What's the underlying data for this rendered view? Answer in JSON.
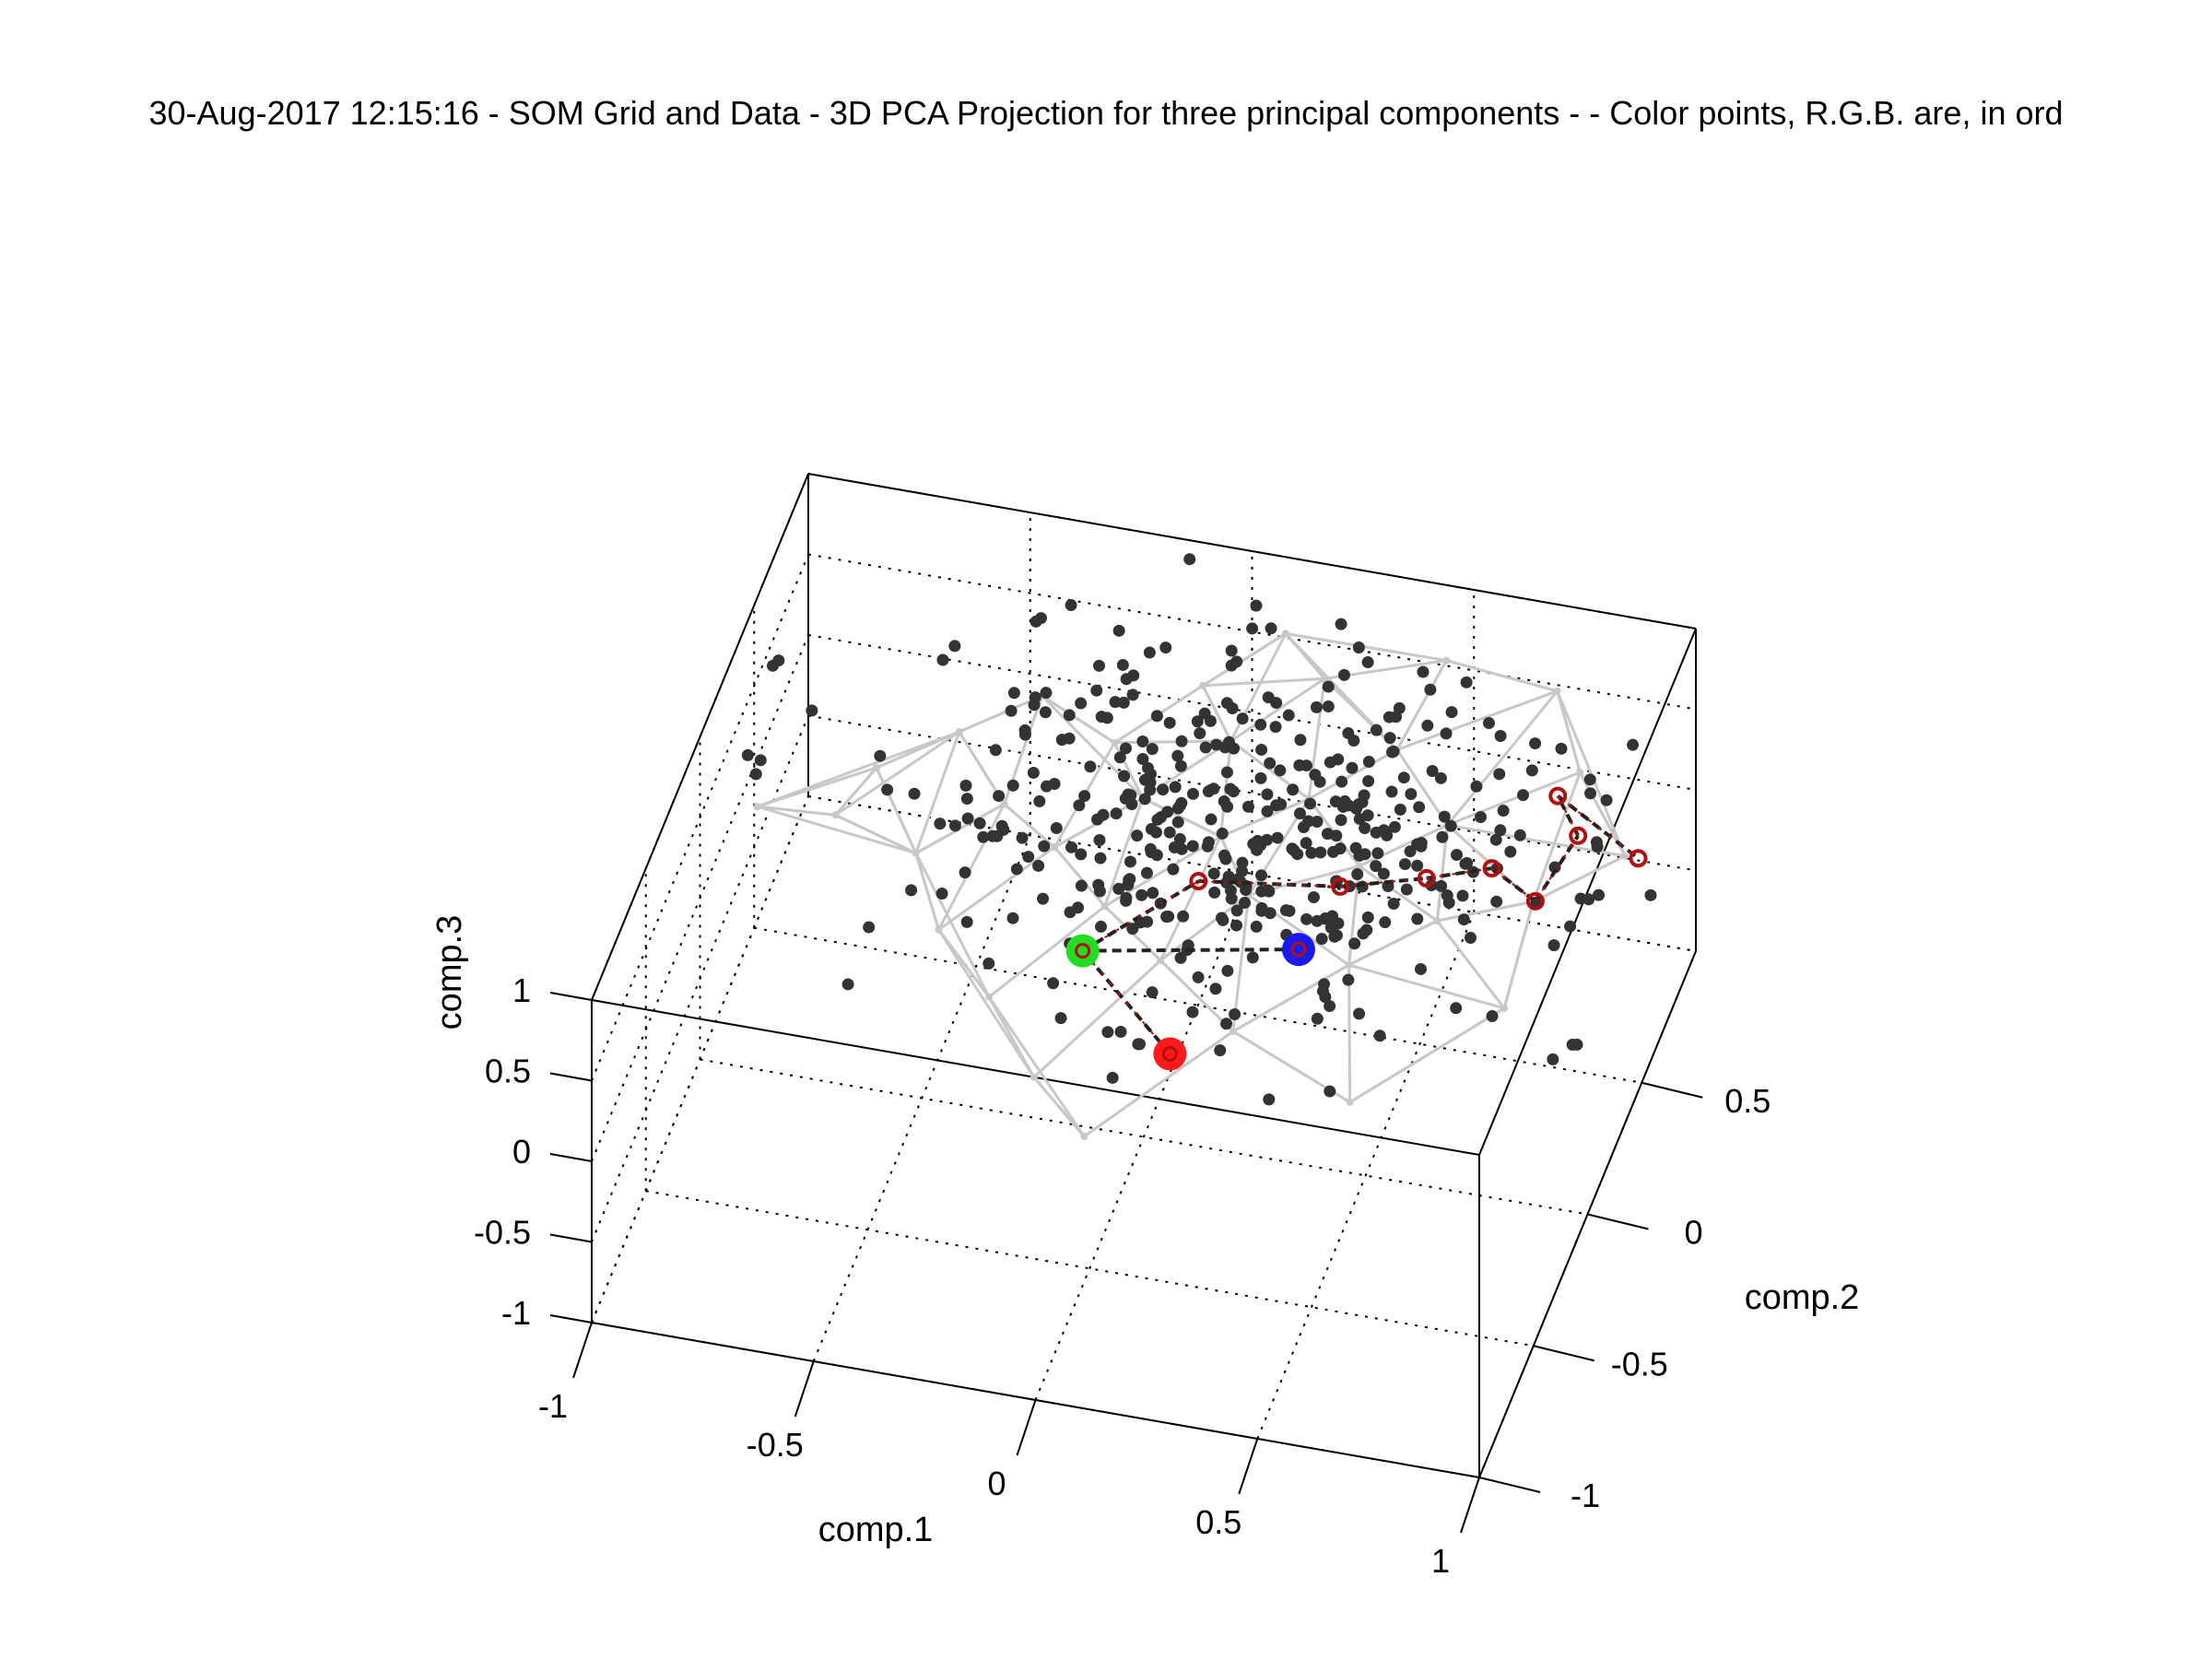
{
  "chart_data": {
    "type": "scatter",
    "projection": "3d",
    "title": "30-Aug-2017 12:15:16 - SOM Grid and Data - 3D PCA Projection for three principal components - - Color points, R.G.B. are, in ord",
    "xlabel": "comp.1",
    "ylabel": "comp.2",
    "zlabel": "comp.3",
    "xlim": [
      -1,
      1
    ],
    "ylim": [
      -1,
      1
    ],
    "zlim": [
      -1,
      1
    ],
    "xticks": [
      "-1",
      "-0.5",
      "0",
      "0.5",
      "1"
    ],
    "yticks": [
      "-1",
      "-0.5",
      "0",
      "0.5"
    ],
    "zticks": [
      "-1",
      "-0.5",
      "0",
      "0.5",
      "1"
    ],
    "grid": true,
    "colors": {
      "data_points": "#333333",
      "som_grid": "#c8c8c8",
      "path": "#b01010",
      "highlight_red": "#ff1a1a",
      "highlight_green": "#22dd22",
      "highlight_blue": "#1a1aee",
      "box": "#000000"
    },
    "highlight_points": [
      {
        "name": "R",
        "x": 0.12,
        "y": -0.25,
        "z": -0.02,
        "color": "#ff1a1a"
      },
      {
        "name": "G",
        "x": -0.15,
        "y": 0.05,
        "z": 0.0,
        "color": "#22dd22"
      },
      {
        "name": "B",
        "x": 0.3,
        "y": 0.2,
        "z": -0.02,
        "color": "#1a1aee"
      }
    ],
    "path_points": [
      {
        "x": 0.12,
        "y": -0.25,
        "z": -0.02
      },
      {
        "x": -0.15,
        "y": 0.05,
        "z": 0.0
      },
      {
        "x": 0.05,
        "y": 0.3,
        "z": 0.12
      },
      {
        "x": 0.35,
        "y": 0.38,
        "z": 0.1
      },
      {
        "x": 0.52,
        "y": 0.48,
        "z": 0.07
      },
      {
        "x": 0.65,
        "y": 0.55,
        "z": 0.08
      },
      {
        "x": 0.78,
        "y": 0.42,
        "z": 0.15
      },
      {
        "x": 0.82,
        "y": 0.65,
        "z": 0.2
      },
      {
        "x": 0.75,
        "y": 0.75,
        "z": 0.25
      },
      {
        "x": 0.98,
        "y": 0.55,
        "z": 0.3
      },
      {
        "x": 0.3,
        "y": 0.2,
        "z": -0.02
      }
    ],
    "som_nodes": [
      [
        -0.92,
        0.2,
        0.28
      ],
      [
        -0.7,
        0.4,
        0.3
      ],
      [
        -0.55,
        0.55,
        0.35
      ],
      [
        -0.4,
        0.7,
        0.4
      ],
      [
        -0.78,
        0.35,
        0.05
      ],
      [
        -0.55,
        0.15,
        0.25
      ],
      [
        -0.4,
        0.35,
        0.3
      ],
      [
        -0.2,
        0.55,
        0.45
      ],
      [
        -0.05,
        0.75,
        0.55
      ],
      [
        0.1,
        0.9,
        0.7
      ],
      [
        -0.45,
        -0.05,
        0.15
      ],
      [
        -0.25,
        0.2,
        0.35
      ],
      [
        -0.1,
        0.4,
        0.4
      ],
      [
        0.05,
        0.6,
        0.5
      ],
      [
        0.2,
        0.85,
        0.55
      ],
      [
        0.45,
        0.95,
        0.62
      ],
      [
        -0.3,
        -0.2,
        0.05
      ],
      [
        -0.1,
        0.05,
        0.3
      ],
      [
        0.1,
        0.3,
        0.42
      ],
      [
        0.25,
        0.5,
        0.4
      ],
      [
        0.4,
        0.7,
        0.45
      ],
      [
        0.7,
        0.95,
        0.55
      ],
      [
        -0.15,
        -0.4,
        -0.05
      ],
      [
        0.05,
        -0.05,
        0.2
      ],
      [
        0.2,
        0.15,
        0.35
      ],
      [
        0.4,
        0.35,
        0.3
      ],
      [
        0.55,
        0.55,
        0.3
      ],
      [
        0.8,
        0.75,
        0.42
      ],
      [
        0.0,
        -0.55,
        -0.1
      ],
      [
        0.25,
        -0.2,
        0.1
      ],
      [
        0.45,
        0.05,
        0.2
      ],
      [
        0.6,
        0.25,
        0.22
      ],
      [
        0.78,
        0.4,
        0.18
      ],
      [
        0.95,
        0.55,
        0.3
      ],
      [
        0.55,
        -0.35,
        0.05
      ],
      [
        0.8,
        0.05,
        0.1
      ]
    ],
    "data_point_count": 420
  }
}
